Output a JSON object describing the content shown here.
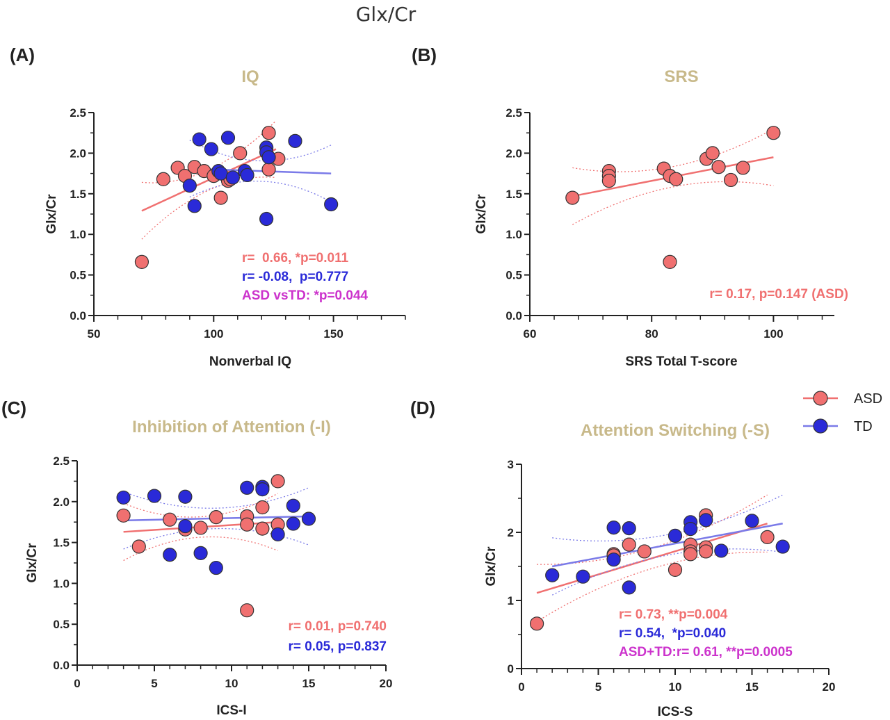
{
  "figure": {
    "title": "Glx/Cr",
    "colors": {
      "asd": "#f07070",
      "td": "#2a2ad8",
      "combined": "#cc33cc",
      "title": "#c8b98a"
    },
    "legend": [
      {
        "label": "ASD",
        "color": "#f07070",
        "icon": "circle-with-line"
      },
      {
        "label": "TD",
        "color": "#2a2ad8",
        "icon": "circle-with-line"
      }
    ]
  },
  "chart_data": [
    {
      "panel": "(A)",
      "type": "scatter",
      "title": "IQ",
      "xlabel": "Nonverbal IQ",
      "ylabel": "Glx/Cr",
      "xlim": [
        50,
        180
      ],
      "ylim": [
        0,
        2.5
      ],
      "xticks": [
        "50",
        "100",
        "150"
      ],
      "yticks": [
        "0.0",
        "0.5",
        "1.0",
        "1.5",
        "2.0",
        "2.5"
      ],
      "series": [
        {
          "name": "ASD",
          "color": "#f07070",
          "points": [
            [
              70,
              0.66
            ],
            [
              79,
              1.68
            ],
            [
              85,
              1.82
            ],
            [
              88,
              1.72
            ],
            [
              92,
              1.83
            ],
            [
              96,
              1.78
            ],
            [
              100,
              1.72
            ],
            [
              103,
              1.45
            ],
            [
              106,
              1.66
            ],
            [
              107,
              1.68
            ],
            [
              111,
              2.0
            ],
            [
              123,
              2.25
            ],
            [
              123,
              1.8
            ],
            [
              127,
              1.93
            ]
          ],
          "fit": [
            [
              70,
              1.29
            ],
            [
              126,
              2.05
            ]
          ]
        },
        {
          "name": "TD",
          "color": "#2a2ad8",
          "points": [
            [
              90,
              1.6
            ],
            [
              92,
              1.35
            ],
            [
              94,
              2.17
            ],
            [
              99,
              2.05
            ],
            [
              102,
              1.78
            ],
            [
              103,
              1.75
            ],
            [
              106,
              2.19
            ],
            [
              108,
              1.7
            ],
            [
              113,
              1.78
            ],
            [
              114,
              1.73
            ],
            [
              122,
              2.07
            ],
            [
              122,
              2.01
            ],
            [
              122,
              1.19
            ],
            [
              123,
              1.95
            ],
            [
              134,
              2.15
            ],
            [
              149,
              1.37
            ]
          ],
          "fit": [
            [
              90,
              1.81
            ],
            [
              149,
              1.75
            ]
          ]
        }
      ],
      "annotations": [
        {
          "text": "r=  0.66, *p=0.011",
          "color": "#f07070"
        },
        {
          "text": "r= -0.08,  p=0.777",
          "color": "#2a2ad8"
        },
        {
          "text": "ASD vsTD: *p=0.044",
          "color": "#cc33cc"
        }
      ]
    },
    {
      "panel": "(B)",
      "type": "scatter",
      "title": "SRS",
      "xlabel": "SRS Total T-score",
      "ylabel": "Glx/Cr",
      "xlim": [
        60,
        110
      ],
      "ylim": [
        0,
        2.5
      ],
      "xticks": [
        "60",
        "80",
        "100"
      ],
      "yticks": [
        "0.0",
        "0.5",
        "1.0",
        "1.5",
        "2.0",
        "2.5"
      ],
      "series": [
        {
          "name": "ASD",
          "color": "#f07070",
          "points": [
            [
              67,
              1.45
            ],
            [
              73,
              1.78
            ],
            [
              73,
              1.72
            ],
            [
              73,
              1.66
            ],
            [
              82,
              1.81
            ],
            [
              83,
              1.72
            ],
            [
              83,
              0.66
            ],
            [
              84,
              1.68
            ],
            [
              89,
              1.93
            ],
            [
              90,
              2.0
            ],
            [
              91,
              1.83
            ],
            [
              93,
              1.67
            ],
            [
              95,
              1.82
            ],
            [
              100,
              2.25
            ]
          ],
          "fit": [
            [
              67,
              1.47
            ],
            [
              100,
              1.95
            ]
          ]
        }
      ],
      "annotations": [
        {
          "text": "r= 0.17, p=0.147 (ASD)",
          "color": "#f07070"
        }
      ]
    },
    {
      "panel": "(C)",
      "type": "scatter",
      "title": "Inhibition of Attention (-I)",
      "xlabel": "ICS-I",
      "ylabel": "Glx/Cr",
      "xlim": [
        0,
        20
      ],
      "ylim": [
        0,
        2.5
      ],
      "xticks": [
        "0",
        "5",
        "10",
        "15",
        "20"
      ],
      "yticks": [
        "0.0",
        "0.5",
        "1.0",
        "1.5",
        "2.0",
        "2.5"
      ],
      "series": [
        {
          "name": "ASD",
          "color": "#f07070",
          "points": [
            [
              3,
              1.83
            ],
            [
              4,
              1.45
            ],
            [
              6,
              1.78
            ],
            [
              7,
              1.66
            ],
            [
              8,
              1.68
            ],
            [
              9,
              1.81
            ],
            [
              11,
              1.82
            ],
            [
              11,
              1.72
            ],
            [
              11,
              0.67
            ],
            [
              12,
              1.93
            ],
            [
              12,
              1.67
            ],
            [
              13,
              2.25
            ],
            [
              13,
              1.72
            ]
          ],
          "fit": [
            [
              3,
              1.63
            ],
            [
              13,
              1.75
            ]
          ]
        },
        {
          "name": "TD",
          "color": "#2a2ad8",
          "points": [
            [
              3,
              2.05
            ],
            [
              5,
              2.07
            ],
            [
              6,
              1.35
            ],
            [
              7,
              2.06
            ],
            [
              7,
              1.7
            ],
            [
              8,
              1.37
            ],
            [
              9,
              1.19
            ],
            [
              11,
              2.17
            ],
            [
              12,
              2.18
            ],
            [
              12,
              2.15
            ],
            [
              13,
              1.6
            ],
            [
              14,
              1.95
            ],
            [
              14,
              1.73
            ],
            [
              15,
              1.79
            ]
          ],
          "fit": [
            [
              3,
              1.77
            ],
            [
              15,
              1.82
            ]
          ]
        }
      ],
      "annotations": [
        {
          "text": "r= 0.01, p=0.740",
          "color": "#f07070"
        },
        {
          "text": "r= 0.05, p=0.837",
          "color": "#2a2ad8"
        }
      ]
    },
    {
      "panel": "(D)",
      "type": "scatter",
      "title": "Attention Switching (-S)",
      "xlabel": "ICS-S",
      "ylabel": "Glx/Cr",
      "xlim": [
        0,
        20
      ],
      "ylim": [
        0,
        3
      ],
      "xticks": [
        "0",
        "5",
        "10",
        "15",
        "20"
      ],
      "yticks": [
        "0",
        "1",
        "2",
        "3"
      ],
      "series": [
        {
          "name": "ASD",
          "color": "#f07070",
          "points": [
            [
              1,
              0.66
            ],
            [
              6,
              1.68
            ],
            [
              6,
              1.66
            ],
            [
              7,
              1.82
            ],
            [
              8,
              1.72
            ],
            [
              10,
              1.45
            ],
            [
              11,
              1.82
            ],
            [
              11,
              1.72
            ],
            [
              11,
              1.68
            ],
            [
              12,
              2.25
            ],
            [
              12,
              1.78
            ],
            [
              12,
              1.72
            ],
            [
              16,
              1.93
            ]
          ],
          "fit": [
            [
              1,
              1.11
            ],
            [
              16,
              2.13
            ]
          ]
        },
        {
          "name": "TD",
          "color": "#2a2ad8",
          "points": [
            [
              2,
              1.37
            ],
            [
              4,
              1.35
            ],
            [
              6,
              2.07
            ],
            [
              6,
              1.6
            ],
            [
              7,
              2.06
            ],
            [
              7,
              1.19
            ],
            [
              10,
              1.95
            ],
            [
              11,
              2.15
            ],
            [
              11,
              2.05
            ],
            [
              12,
              2.18
            ],
            [
              13,
              1.73
            ],
            [
              15,
              2.17
            ],
            [
              17,
              1.79
            ]
          ],
          "fit": [
            [
              2,
              1.5
            ],
            [
              17,
              2.13
            ]
          ]
        }
      ],
      "annotations": [
        {
          "text": "r= 0.73, **p=0.004",
          "color": "#f07070"
        },
        {
          "text": "r= 0.54,  *p=0.040",
          "color": "#2a2ad8"
        },
        {
          "text": "ASD+TD:r= 0.61, **p=0.0005",
          "color": "#cc33cc"
        }
      ]
    }
  ]
}
